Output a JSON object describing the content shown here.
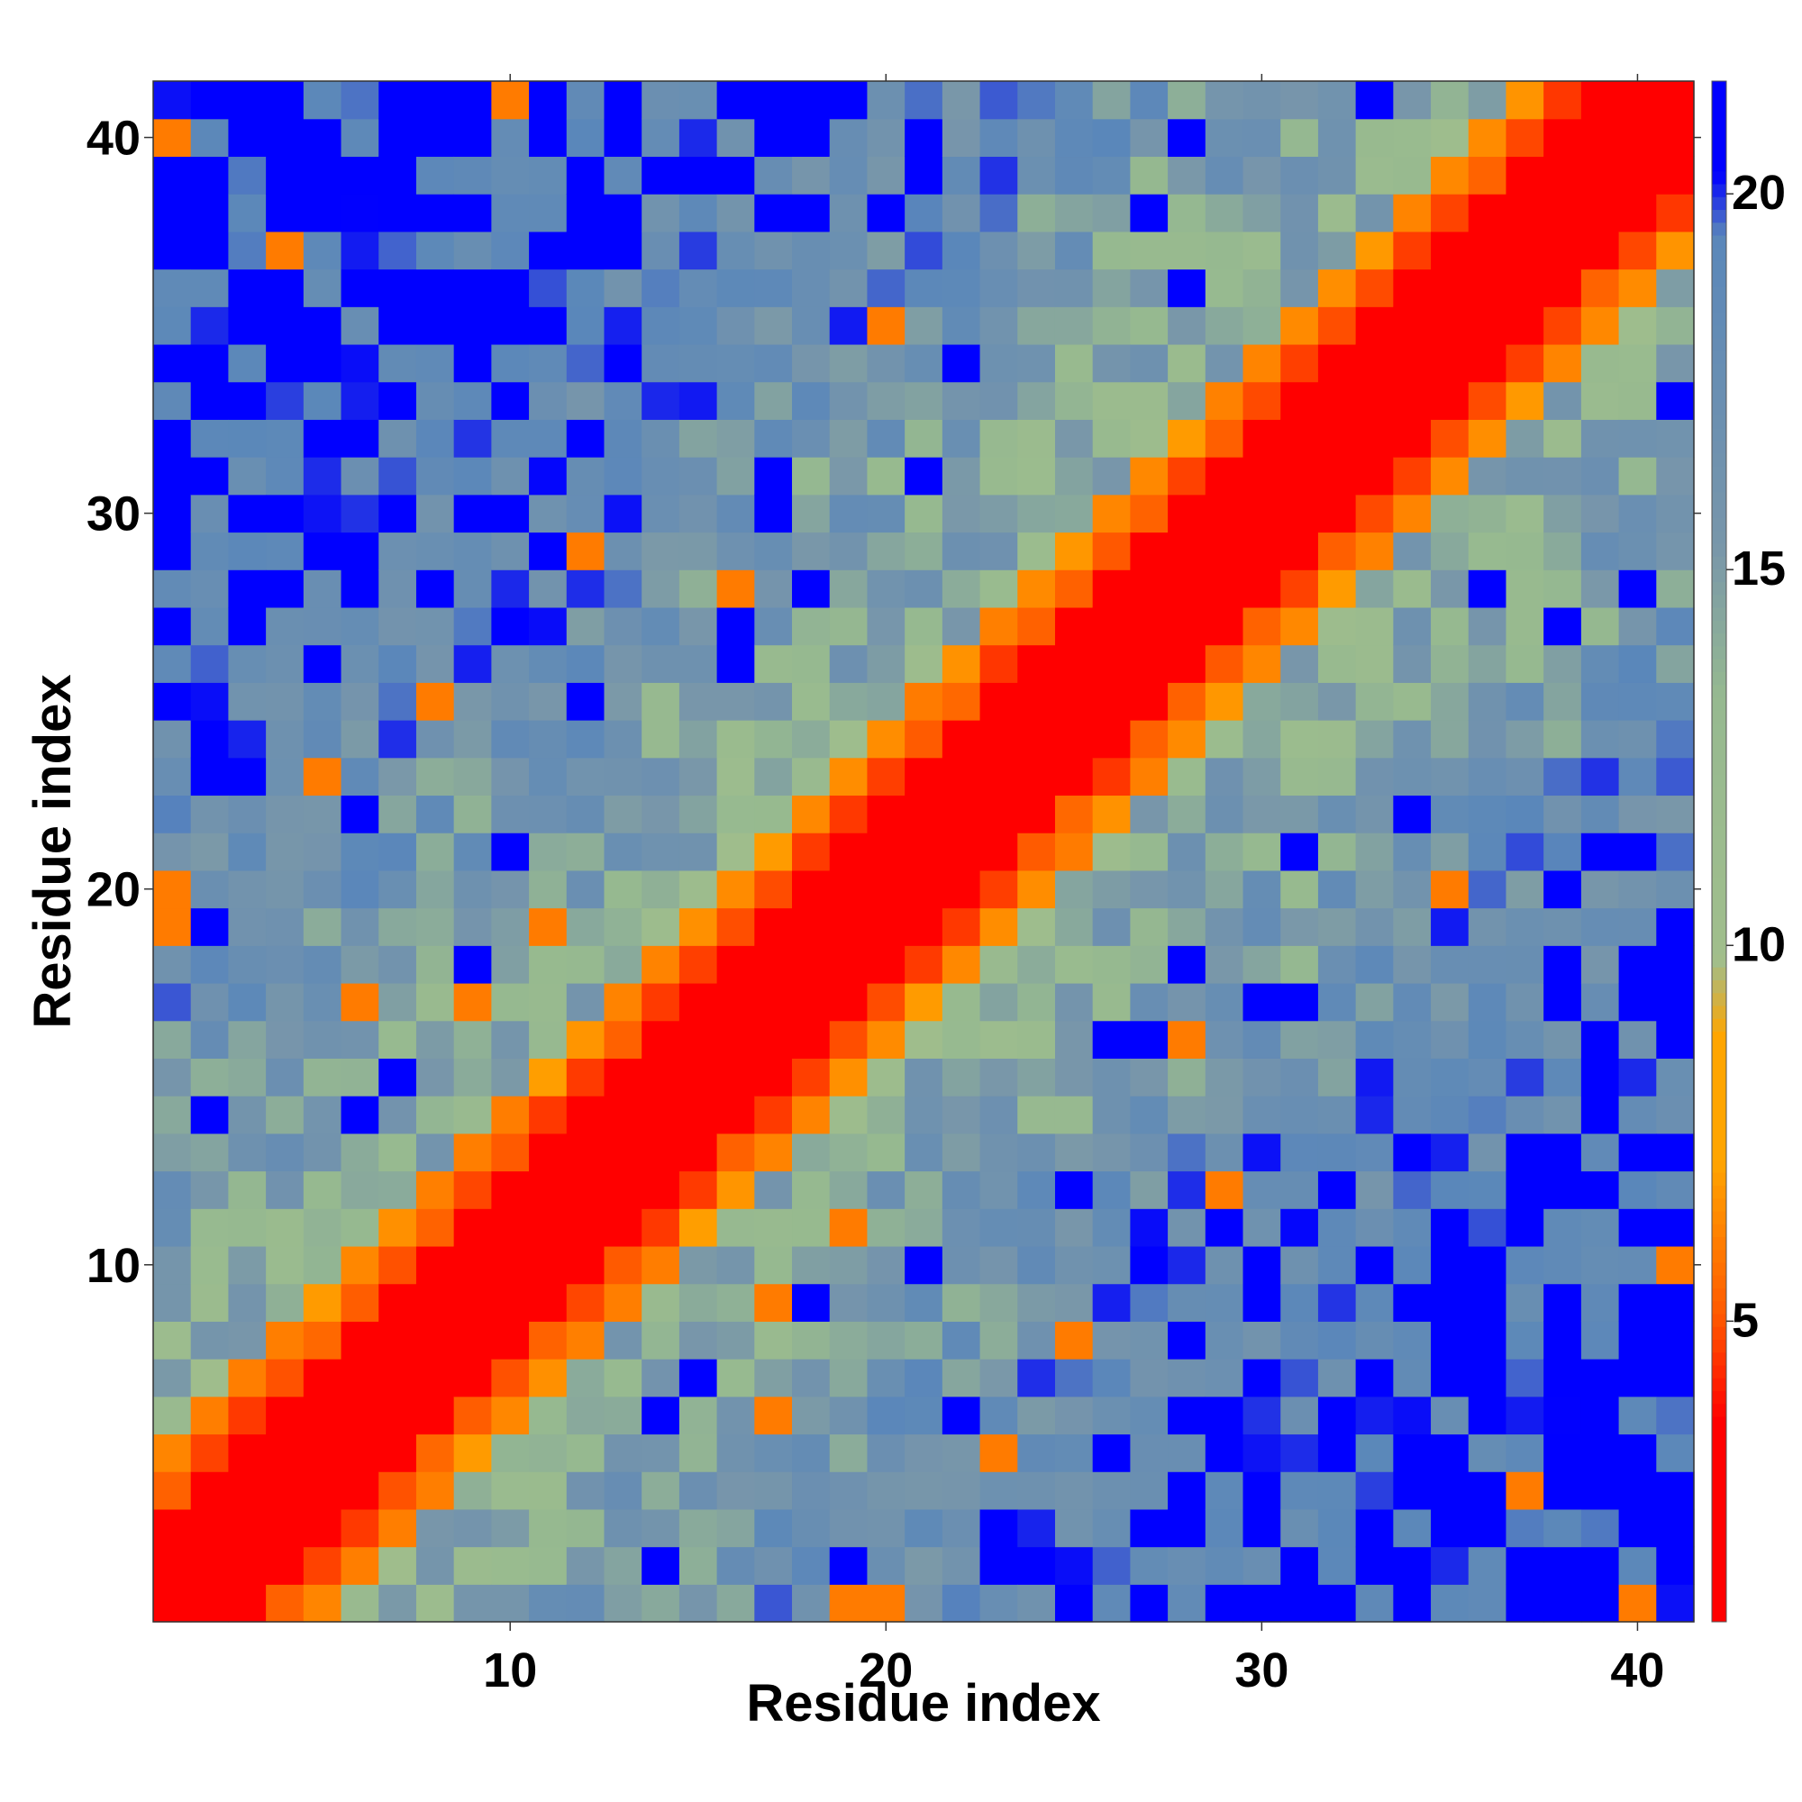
{
  "chart_data": {
    "type": "heatmap",
    "title": "",
    "xlabel": "Residue index",
    "ylabel": "Residue index",
    "n": 41,
    "xlim": [
      1,
      41
    ],
    "ylim": [
      1,
      41
    ],
    "x_ticks": [
      10,
      20,
      30,
      40
    ],
    "y_ticks": [
      10,
      20,
      30,
      40
    ],
    "colorbar": {
      "ticks": [
        5,
        10,
        15,
        20
      ],
      "range": [
        1,
        21.5
      ],
      "colors": [
        "#ff0000",
        "#ff5a00",
        "#ffa500",
        "#95b990",
        "#5b87ba",
        "#0000ff"
      ]
    },
    "description_free_model": {
      "diagonal_band": "distance grows with |i-j|",
      "values_note": "symmetric residue-residue distance matrix"
    },
    "matrix_rule": "value(i,j) = min(21, 1 + 1.6*|i-j|) with noise; far pairs saturate at ~21"
  }
}
